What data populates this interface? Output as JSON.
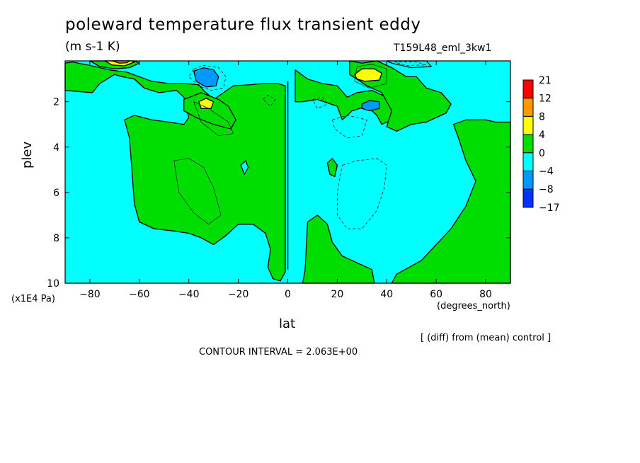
{
  "title": "poleward temperature flux transient eddy",
  "units": "(m s-1 K)",
  "run_label": "T159L48_eml_3kw1",
  "diff_note": "[ (diff) from (mean) control ]",
  "contour_interval": "CONTOUR INTERVAL = 2.063E+00",
  "chart_data": {
    "type": "heatmap",
    "xlabel": "lat",
    "ylabel": "plev",
    "xunits": "(degrees_north)",
    "yunits": "(x1E4 Pa)",
    "xlim": [
      -90,
      90
    ],
    "ylim": [
      10,
      0.2
    ],
    "x_ticks": [
      -80,
      -60,
      -40,
      -20,
      0,
      20,
      40,
      60,
      80
    ],
    "x_tick_labels": [
      "−80",
      "−60",
      "−40",
      "−20",
      "0",
      "20",
      "40",
      "60",
      "80"
    ],
    "y_ticks": [
      2,
      4,
      6,
      8,
      10
    ],
    "y_tick_labels": [
      "2",
      "4",
      "6",
      "8",
      "10"
    ],
    "colorbar": {
      "labels": [
        "21",
        "12",
        "8",
        "4",
        "0",
        "−4",
        "−8",
        "−17"
      ],
      "bins": [
        {
          "lo": 12,
          "hi": 21,
          "color": "#ff0000"
        },
        {
          "lo": 8,
          "hi": 12,
          "color": "#ff9900"
        },
        {
          "lo": 4,
          "hi": 8,
          "color": "#ffff00"
        },
        {
          "lo": 0,
          "hi": 4,
          "color": "#00dd00"
        },
        {
          "lo": -4,
          "hi": 0,
          "color": "#00ffff"
        },
        {
          "lo": -8,
          "hi": -4,
          "color": "#0099ff"
        },
        {
          "lo": -17,
          "hi": -8,
          "color": "#0033ff"
        }
      ]
    },
    "colors": {
      "neg_0_4": "#00ffff",
      "pos_0_4": "#00dd00",
      "pos_4_8": "#ffff00",
      "neg_4_8": "#0099ff",
      "pos_8_12": "#ff9900"
    },
    "regions": [
      {
        "name": "sh-positive-main",
        "bin": "pos_0_4",
        "poly": [
          [
            -90,
            1.5
          ],
          [
            -79,
            1.6
          ],
          [
            -76,
            1.2
          ],
          [
            -70,
            0.8
          ],
          [
            -67,
            0.9
          ],
          [
            -62,
            1.0
          ],
          [
            -58,
            1.4
          ],
          [
            -52,
            1.6
          ],
          [
            -45,
            1.5
          ],
          [
            -42,
            1.8
          ],
          [
            -40,
            2.7
          ],
          [
            -42,
            3.0
          ],
          [
            -48,
            2.9
          ],
          [
            -55,
            2.8
          ],
          [
            -62,
            2.6
          ],
          [
            -66,
            2.8
          ],
          [
            -64,
            3.6
          ],
          [
            -63,
            5.0
          ],
          [
            -62,
            6.5
          ],
          [
            -60,
            7.3
          ],
          [
            -54,
            7.6
          ],
          [
            -46,
            7.7
          ],
          [
            -40,
            7.8
          ],
          [
            -35,
            8.0
          ],
          [
            -30,
            8.3
          ],
          [
            -25,
            7.9
          ],
          [
            -20,
            7.4
          ],
          [
            -14,
            7.4
          ],
          [
            -9,
            7.8
          ],
          [
            -7,
            8.5
          ],
          [
            -8,
            9.3
          ],
          [
            -6,
            9.8
          ],
          [
            -3,
            9.9
          ],
          [
            -1,
            9.5
          ],
          [
            -1,
            1.3
          ],
          [
            -4,
            1.2
          ],
          [
            -10,
            1.2
          ],
          [
            -15,
            1.25
          ],
          [
            -22,
            1.3
          ],
          [
            -26,
            1.6
          ],
          [
            -30,
            1.9
          ],
          [
            -34,
            1.5
          ],
          [
            -36,
            1.25
          ],
          [
            -42,
            1.2
          ],
          [
            -48,
            1.2
          ],
          [
            -55,
            1.1
          ],
          [
            -65,
            0.7
          ],
          [
            -72,
            0.6
          ],
          [
            -80,
            0.4
          ],
          [
            -87,
            0.25
          ],
          [
            -90,
            0.3
          ]
        ]
      },
      {
        "name": "sh-top-positive",
        "bin": "pos_0_4",
        "poly": [
          [
            -80,
            0.2
          ],
          [
            -76,
            0.45
          ],
          [
            -70,
            0.55
          ],
          [
            -64,
            0.5
          ],
          [
            -60,
            0.3
          ],
          [
            -62,
            0.2
          ]
        ]
      },
      {
        "name": "sh-top-yellow",
        "bin": "pos_4_8",
        "poly": [
          [
            -74,
            0.2
          ],
          [
            -71,
            0.38
          ],
          [
            -66,
            0.42
          ],
          [
            -62,
            0.25
          ],
          [
            -63,
            0.2
          ]
        ]
      },
      {
        "name": "sh-top-orange",
        "bin": "pos_8_12",
        "poly": [
          [
            -71,
            0.2
          ],
          [
            -68,
            0.3
          ],
          [
            -65,
            0.28
          ],
          [
            -64,
            0.2
          ]
        ]
      },
      {
        "name": "sh-upper-positive",
        "bin": "pos_0_4",
        "poly": [
          [
            -42,
            1.9
          ],
          [
            -35,
            1.6
          ],
          [
            -28,
            1.9
          ],
          [
            -24,
            2.2
          ],
          [
            -21,
            2.8
          ],
          [
            -23,
            3.2
          ],
          [
            -30,
            3.0
          ],
          [
            -37,
            2.7
          ],
          [
            -42,
            2.4
          ]
        ]
      },
      {
        "name": "sh-yellow-small",
        "bin": "pos_4_8",
        "poly": [
          [
            -36,
            2.0
          ],
          [
            -33,
            1.85
          ],
          [
            -30,
            2.0
          ],
          [
            -31,
            2.3
          ],
          [
            -35,
            2.3
          ]
        ]
      },
      {
        "name": "sh-blue-upper",
        "bin": "neg_4_8",
        "poly": [
          [
            -38,
            0.65
          ],
          [
            -34,
            0.5
          ],
          [
            -30,
            0.6
          ],
          [
            -28,
            0.9
          ],
          [
            -29,
            1.3
          ],
          [
            -33,
            1.35
          ],
          [
            -37,
            1.1
          ]
        ]
      },
      {
        "name": "sh-cyan-hole",
        "bin": "neg_0_4",
        "poly": [
          [
            -19,
            4.8
          ],
          [
            -17,
            4.6
          ],
          [
            -16,
            4.9
          ],
          [
            -17.5,
            5.2
          ]
        ]
      },
      {
        "name": "nh-positive-main",
        "bin": "pos_0_4",
        "poly": [
          [
            3,
            0.6
          ],
          [
            8,
            1.0
          ],
          [
            14,
            1.2
          ],
          [
            20,
            1.3
          ],
          [
            24,
            1.8
          ],
          [
            28,
            1.6
          ],
          [
            34,
            1.5
          ],
          [
            40,
            1.8
          ],
          [
            44,
            2.2
          ],
          [
            42,
            2.8
          ],
          [
            38,
            3.0
          ],
          [
            36,
            2.6
          ],
          [
            32,
            2.2
          ],
          [
            26,
            2.4
          ],
          [
            22,
            2.8
          ],
          [
            20,
            2.2
          ],
          [
            12,
            1.9
          ],
          [
            6,
            2.0
          ],
          [
            3,
            2.0
          ]
        ]
      },
      {
        "name": "nh-upper-right",
        "bin": "pos_0_4",
        "poly": [
          [
            25,
            0.2
          ],
          [
            30,
            0.3
          ],
          [
            36,
            0.2
          ],
          [
            42,
            0.5
          ],
          [
            48,
            0.9
          ],
          [
            52,
            0.9
          ],
          [
            56,
            1.4
          ],
          [
            62,
            1.6
          ],
          [
            66,
            2.1
          ],
          [
            64,
            2.5
          ],
          [
            56,
            2.9
          ],
          [
            50,
            3.0
          ],
          [
            44,
            3.3
          ],
          [
            40,
            3.1
          ],
          [
            42,
            2.4
          ],
          [
            38,
            1.6
          ],
          [
            32,
            1.3
          ],
          [
            25,
            0.8
          ]
        ]
      },
      {
        "name": "nh-yellow",
        "bin": "pos_4_8",
        "poly": [
          [
            27,
            0.8
          ],
          [
            30,
            0.55
          ],
          [
            35,
            0.55
          ],
          [
            38,
            0.75
          ],
          [
            37,
            1.05
          ],
          [
            31,
            1.1
          ],
          [
            28,
            1.0
          ]
        ]
      },
      {
        "name": "nh-blue-small",
        "bin": "neg_4_8",
        "poly": [
          [
            30,
            2.1
          ],
          [
            33,
            1.95
          ],
          [
            37,
            2.0
          ],
          [
            37,
            2.3
          ],
          [
            33,
            2.4
          ],
          [
            30,
            2.3
          ]
        ]
      },
      {
        "name": "nh-positive-bottom",
        "bin": "pos_0_4",
        "poly": [
          [
            8,
            7.3
          ],
          [
            12,
            7.0
          ],
          [
            16,
            7.4
          ],
          [
            18,
            8.2
          ],
          [
            22,
            8.8
          ],
          [
            28,
            9.1
          ],
          [
            34,
            9.4
          ],
          [
            35,
            10
          ],
          [
            6,
            10
          ],
          [
            7,
            9.4
          ]
        ]
      },
      {
        "name": "nh-small-positive",
        "bin": "pos_0_4",
        "poly": [
          [
            16,
            4.7
          ],
          [
            18,
            4.5
          ],
          [
            20,
            4.8
          ],
          [
            19,
            5.3
          ],
          [
            17,
            5.2
          ]
        ]
      },
      {
        "name": "nh-positive-east",
        "bin": "pos_0_4",
        "poly": [
          [
            67,
            3.0
          ],
          [
            72,
            2.8
          ],
          [
            80,
            2.8
          ],
          [
            84,
            2.9
          ],
          [
            90,
            2.9
          ],
          [
            90,
            10
          ],
          [
            42,
            10
          ],
          [
            44,
            9.6
          ],
          [
            54,
            9.0
          ],
          [
            60,
            8.3
          ],
          [
            66,
            7.6
          ],
          [
            72,
            6.6
          ],
          [
            76,
            5.5
          ],
          [
            72,
            4.6
          ],
          [
            69,
            3.6
          ]
        ]
      },
      {
        "name": "nh-cyan-top",
        "bin": "neg_0_4",
        "poly": [
          [
            40,
            0.2
          ],
          [
            56,
            0.2
          ],
          [
            58,
            0.45
          ],
          [
            50,
            0.5
          ],
          [
            42,
            0.3
          ]
        ]
      }
    ]
  }
}
